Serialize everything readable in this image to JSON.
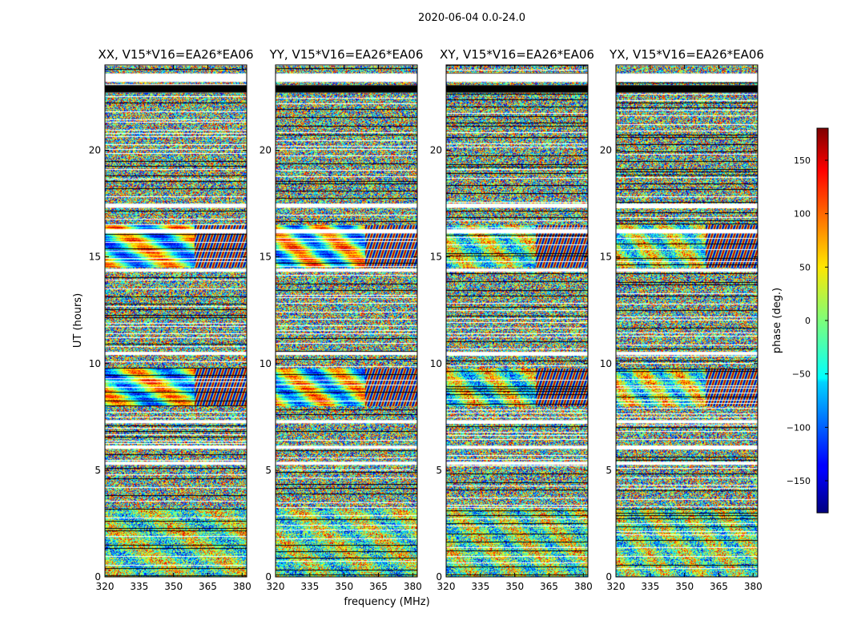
{
  "figure": {
    "suptitle": "2020-06-04 0.0-24.0"
  },
  "chart_data": {
    "type": "heatmap",
    "title": "2020-06-04 0.0-24.0",
    "xlabel": "frequency (MHz)",
    "ylabel": "UT (hours)",
    "xlim": [
      320,
      382
    ],
    "ylim": [
      0,
      24
    ],
    "x_ticks": [
      320,
      335,
      350,
      365,
      380
    ],
    "y_ticks": [
      0,
      5,
      10,
      15,
      20
    ],
    "panels": [
      {
        "name": "XX",
        "title": "XX, V15*V16=EA26*EA06"
      },
      {
        "name": "YY",
        "title": "YY, V15*V16=EA26*EA06"
      },
      {
        "name": "XY",
        "title": "XY, V15*V16=EA26*EA06"
      },
      {
        "name": "YX",
        "title": "YX, V15*V16=EA26*EA06"
      }
    ],
    "colorbar": {
      "label": "phase (deg.)",
      "range": [
        -180,
        180
      ],
      "ticks": [
        150,
        100,
        50,
        0,
        -50,
        -100,
        -150
      ],
      "tick_labels": [
        "150",
        "100",
        "50",
        "0",
        "−50",
        "−100",
        "−150"
      ],
      "colormap": "jet"
    },
    "blank_bands_hours": [
      [
        23.2,
        23.6
      ],
      [
        22.7,
        23.05
      ],
      [
        17.3,
        17.5
      ],
      [
        16.1,
        16.3
      ],
      [
        14.3,
        14.45
      ],
      [
        10.4,
        10.55
      ],
      [
        7.2,
        7.35
      ],
      [
        6.0,
        6.15
      ],
      [
        5.25,
        5.4
      ]
    ],
    "flagged_bands_hours": [
      [
        22.7,
        23.05
      ]
    ]
  }
}
